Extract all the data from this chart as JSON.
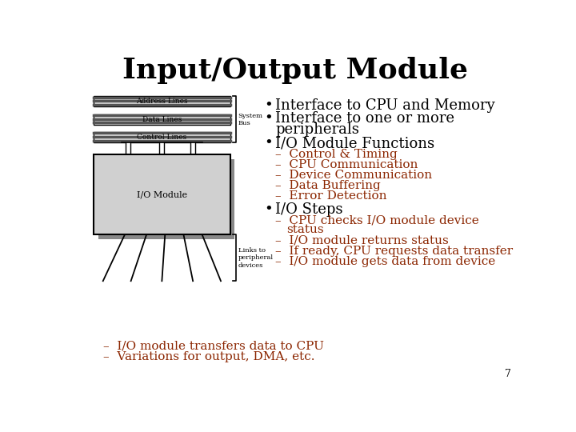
{
  "title": "Input/Output Module",
  "title_fontsize": 26,
  "title_fontweight": "bold",
  "background_color": "#ffffff",
  "text_color_black": "#000000",
  "text_color_red": "#8B2500",
  "slide_number": "7",
  "sub_items_functions": [
    "Control & Timing",
    "CPU Communication",
    "Device Communication",
    "Data Buffering",
    "Error Detection"
  ],
  "sub_items_steps": [
    "CPU checks I/O module device",
    "status",
    "I/O module returns status",
    "If ready, CPU requests data transfer",
    "I/O module gets data from device"
  ],
  "bottom_items": [
    "I/O module transfers data to CPU",
    "Variations for output, DMA, etc."
  ],
  "diagram_labels": {
    "address": "Address Lines",
    "data": "Data Lines",
    "control": "Control Lines",
    "system_bus": "System\nBus",
    "io_module": "I/O Module",
    "links": "Links to\nperipheral\ndevices"
  }
}
